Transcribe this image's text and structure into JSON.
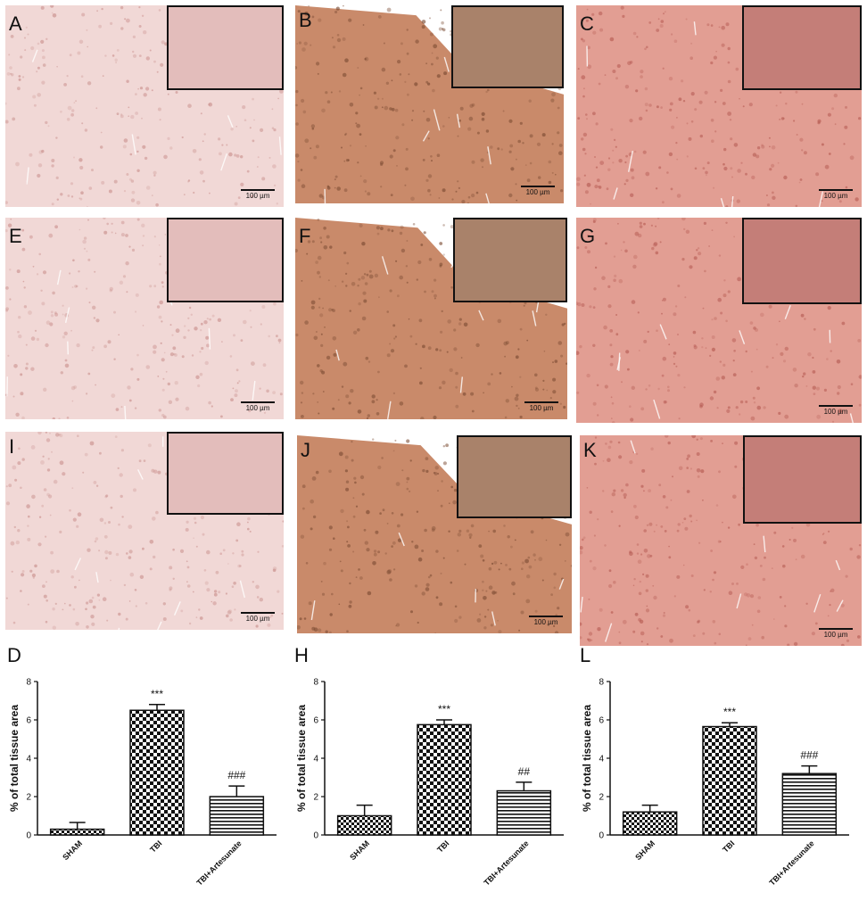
{
  "figure": {
    "panels": [
      {
        "letter": "A",
        "scale_label": "100 µm",
        "stain": "light"
      },
      {
        "letter": "B",
        "scale_label": "100 µm",
        "stain": "brown"
      },
      {
        "letter": "C",
        "scale_label": "100 µm",
        "stain": "medium"
      },
      {
        "letter": "E",
        "scale_label": "100 µm",
        "stain": "light"
      },
      {
        "letter": "F",
        "scale_label": "100 µm",
        "stain": "brown"
      },
      {
        "letter": "G",
        "scale_label": "100 µm",
        "stain": "medium"
      },
      {
        "letter": "I",
        "scale_label": "100 µm",
        "stain": "light"
      },
      {
        "letter": "J",
        "scale_label": "100 µm",
        "stain": "brown"
      },
      {
        "letter": "K",
        "scale_label": "100 µm",
        "stain": "medium"
      }
    ],
    "colors": {
      "light": "#f1d8d6",
      "medium": "#e29e93",
      "brown": "#c98a6a"
    }
  },
  "chart_data": [
    {
      "letter": "D",
      "type": "bar",
      "categories": [
        "SHAM",
        "TBI",
        "TBI+Artesunate"
      ],
      "values": [
        0.3,
        6.5,
        2.0
      ],
      "errors": [
        0.35,
        0.3,
        0.55
      ],
      "annotations": [
        "",
        "***",
        "###"
      ],
      "ylabel": "% of total tissue area",
      "ylim": [
        0,
        8
      ],
      "yticks": [
        0,
        2,
        4,
        6,
        8
      ],
      "patterns": [
        "checker-small",
        "checker-large",
        "horizontal-lines"
      ]
    },
    {
      "letter": "H",
      "type": "bar",
      "categories": [
        "SHAM",
        "TBI",
        "TBI+Artesunate"
      ],
      "values": [
        1.0,
        5.75,
        2.3
      ],
      "errors": [
        0.55,
        0.25,
        0.45
      ],
      "annotations": [
        "",
        "***",
        "##"
      ],
      "ylabel": "% of total tissue area",
      "ylim": [
        0,
        8
      ],
      "yticks": [
        0,
        2,
        4,
        6,
        8
      ],
      "patterns": [
        "checker-small",
        "checker-large",
        "horizontal-lines"
      ]
    },
    {
      "letter": "L",
      "type": "bar",
      "categories": [
        "SHAM",
        "TBI",
        "TBI+Artesunate"
      ],
      "values": [
        1.2,
        5.65,
        3.2
      ],
      "errors": [
        0.35,
        0.2,
        0.4
      ],
      "annotations": [
        "",
        "***",
        "###"
      ],
      "ylabel": "% of total tissue area",
      "ylim": [
        0,
        8
      ],
      "yticks": [
        0,
        2,
        4,
        6,
        8
      ],
      "patterns": [
        "checker-small",
        "checker-large",
        "horizontal-lines"
      ]
    }
  ]
}
